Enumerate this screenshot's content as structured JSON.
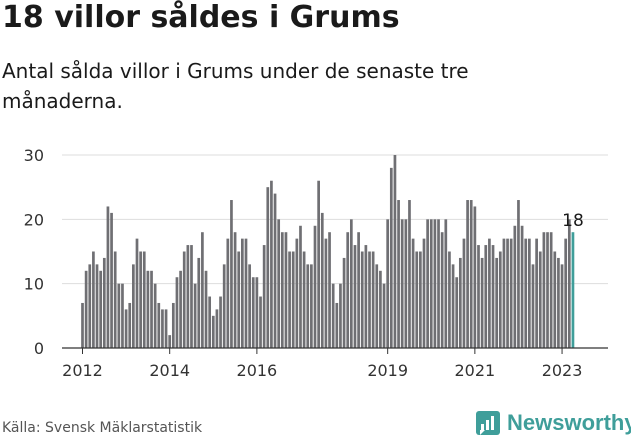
{
  "title": "18 villor såldes i Grums",
  "subtitle": "Antal sålda villor i Grums under de senaste tre månaderna.",
  "source": "Källa: Svensk Mäklarstatistik",
  "brand": {
    "name": "Newsworthy",
    "icon": "chart-speech-bubble-icon",
    "color": "#3f9e9a"
  },
  "colors": {
    "bar": "#6f6f73",
    "highlight": "#3f9e9a",
    "grid": "#dddddd",
    "axis": "#333333"
  },
  "chart_data": {
    "type": "bar",
    "x_start": "2012-01",
    "x_frequency": "monthly",
    "values": [
      7,
      12,
      13,
      15,
      13,
      12,
      14,
      22,
      21,
      15,
      10,
      10,
      6,
      7,
      13,
      17,
      15,
      15,
      12,
      12,
      10,
      7,
      6,
      6,
      2,
      7,
      11,
      12,
      15,
      16,
      16,
      10,
      14,
      18,
      12,
      8,
      5,
      6,
      8,
      13,
      17,
      23,
      18,
      15,
      17,
      17,
      13,
      11,
      11,
      8,
      16,
      25,
      26,
      24,
      20,
      18,
      18,
      15,
      15,
      17,
      19,
      15,
      13,
      13,
      19,
      26,
      21,
      17,
      18,
      10,
      7,
      10,
      14,
      18,
      20,
      16,
      18,
      15,
      16,
      15,
      15,
      13,
      12,
      10,
      20,
      28,
      30,
      23,
      20,
      20,
      23,
      17,
      15,
      15,
      17,
      20,
      20,
      20,
      20,
      18,
      20,
      15,
      13,
      11,
      14,
      17,
      23,
      23,
      22,
      16,
      14,
      16,
      17,
      16,
      14,
      15,
      17,
      17,
      17,
      19,
      23,
      19,
      17,
      17,
      13,
      17,
      15,
      18,
      18,
      18,
      15,
      14,
      13,
      17,
      20,
      18
    ],
    "highlight_last": true,
    "last_label": "18",
    "ylim": [
      0,
      30
    ],
    "y_ticks": [
      0,
      10,
      20,
      30
    ],
    "x_ticks": [
      "2012",
      "2014",
      "2016",
      "2019",
      "2021",
      "2023"
    ],
    "grid": true,
    "legend": "none"
  }
}
